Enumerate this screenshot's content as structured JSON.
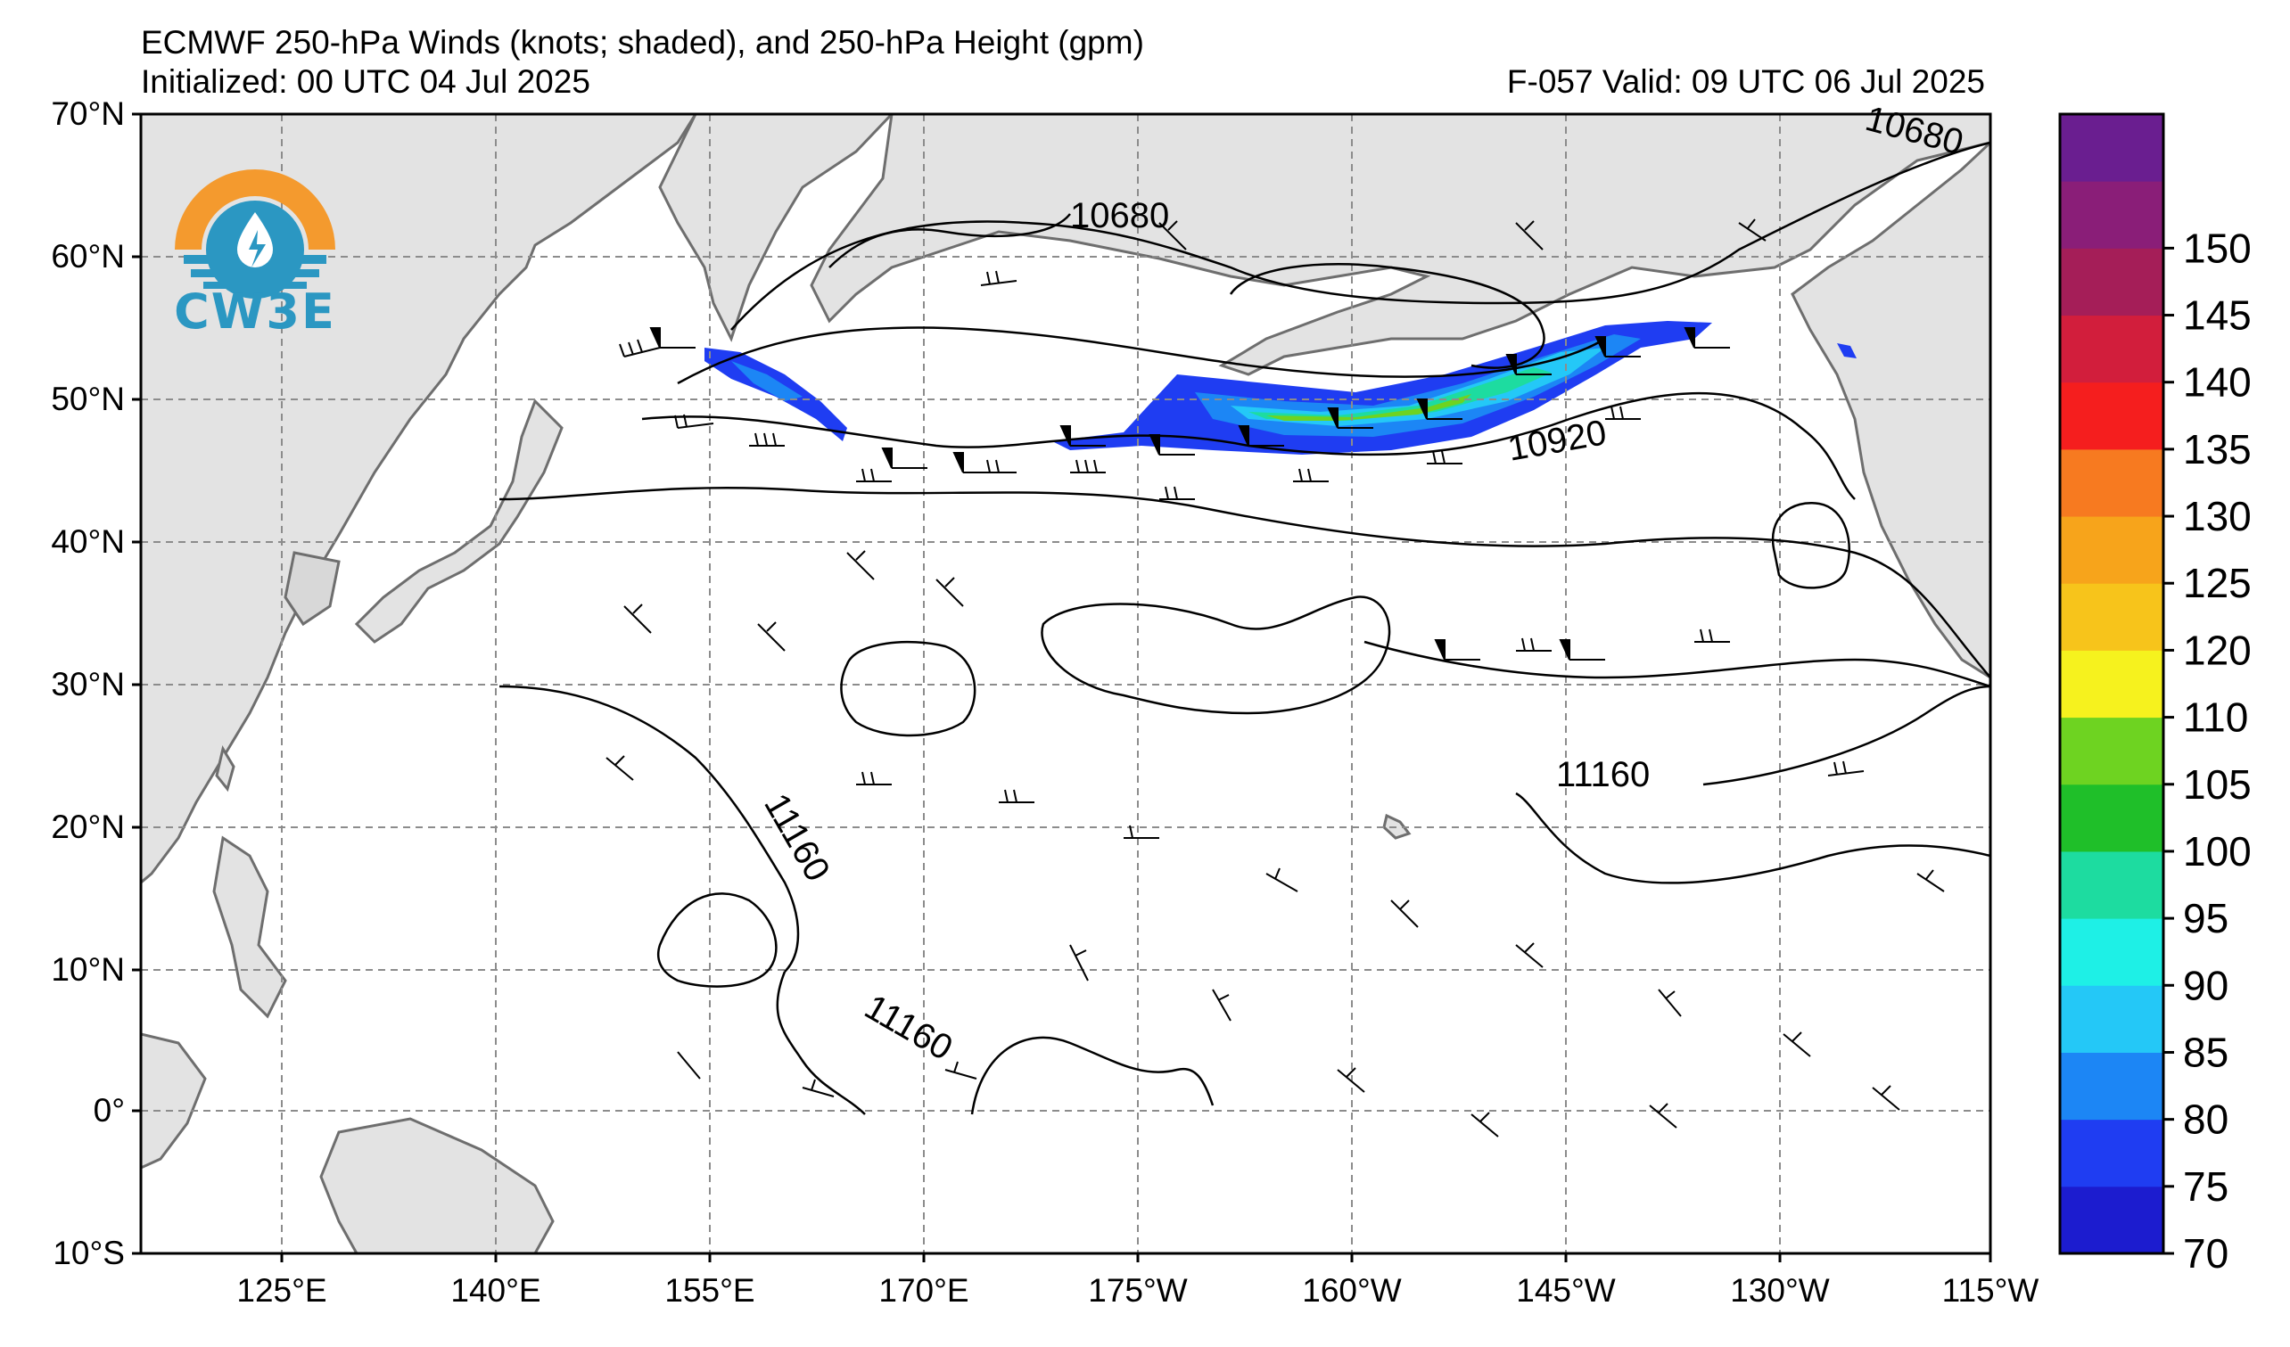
{
  "header": {
    "title_line1": "ECMWF 250-hPa Winds (knots; shaded), and 250-hPa Height (gpm)",
    "initialized": "Initialized: 00 UTC 04 Jul 2025",
    "valid": "F-057  Valid: 09 UTC 06 Jul 2025"
  },
  "logo": {
    "text": "CW3E"
  },
  "axes": {
    "lat_labels": [
      "70°N",
      "60°N",
      "50°N",
      "40°N",
      "30°N",
      "20°N",
      "10°N",
      "0°",
      "10°S"
    ],
    "lon_labels": [
      "125°E",
      "140°E",
      "155°E",
      "170°E",
      "175°W",
      "160°W",
      "145°W",
      "130°W",
      "115°W"
    ]
  },
  "contour_labels": [
    "10680",
    "10680",
    "10920",
    "11160",
    "11160",
    "11160"
  ],
  "colorbar": {
    "ticks": [
      "70",
      "75",
      "80",
      "85",
      "90",
      "95",
      "100",
      "105",
      "110",
      "120",
      "125",
      "130",
      "135",
      "140",
      "145",
      "150"
    ],
    "colors": [
      "#1c1ccf",
      "#1f3df2",
      "#1c86f5",
      "#24c8f7",
      "#1ef0e6",
      "#1ddca0",
      "#1fbf29",
      "#6ed321",
      "#f6f21e",
      "#f7c41b",
      "#f7a41b",
      "#f77a20",
      "#f51e1e",
      "#d21e3c",
      "#a51e58",
      "#8a1e78",
      "#6a1e90"
    ]
  },
  "colors": {
    "land": "#e3e3e3",
    "coast": "#6e6e6e",
    "grid": "#8c8c8c"
  }
}
